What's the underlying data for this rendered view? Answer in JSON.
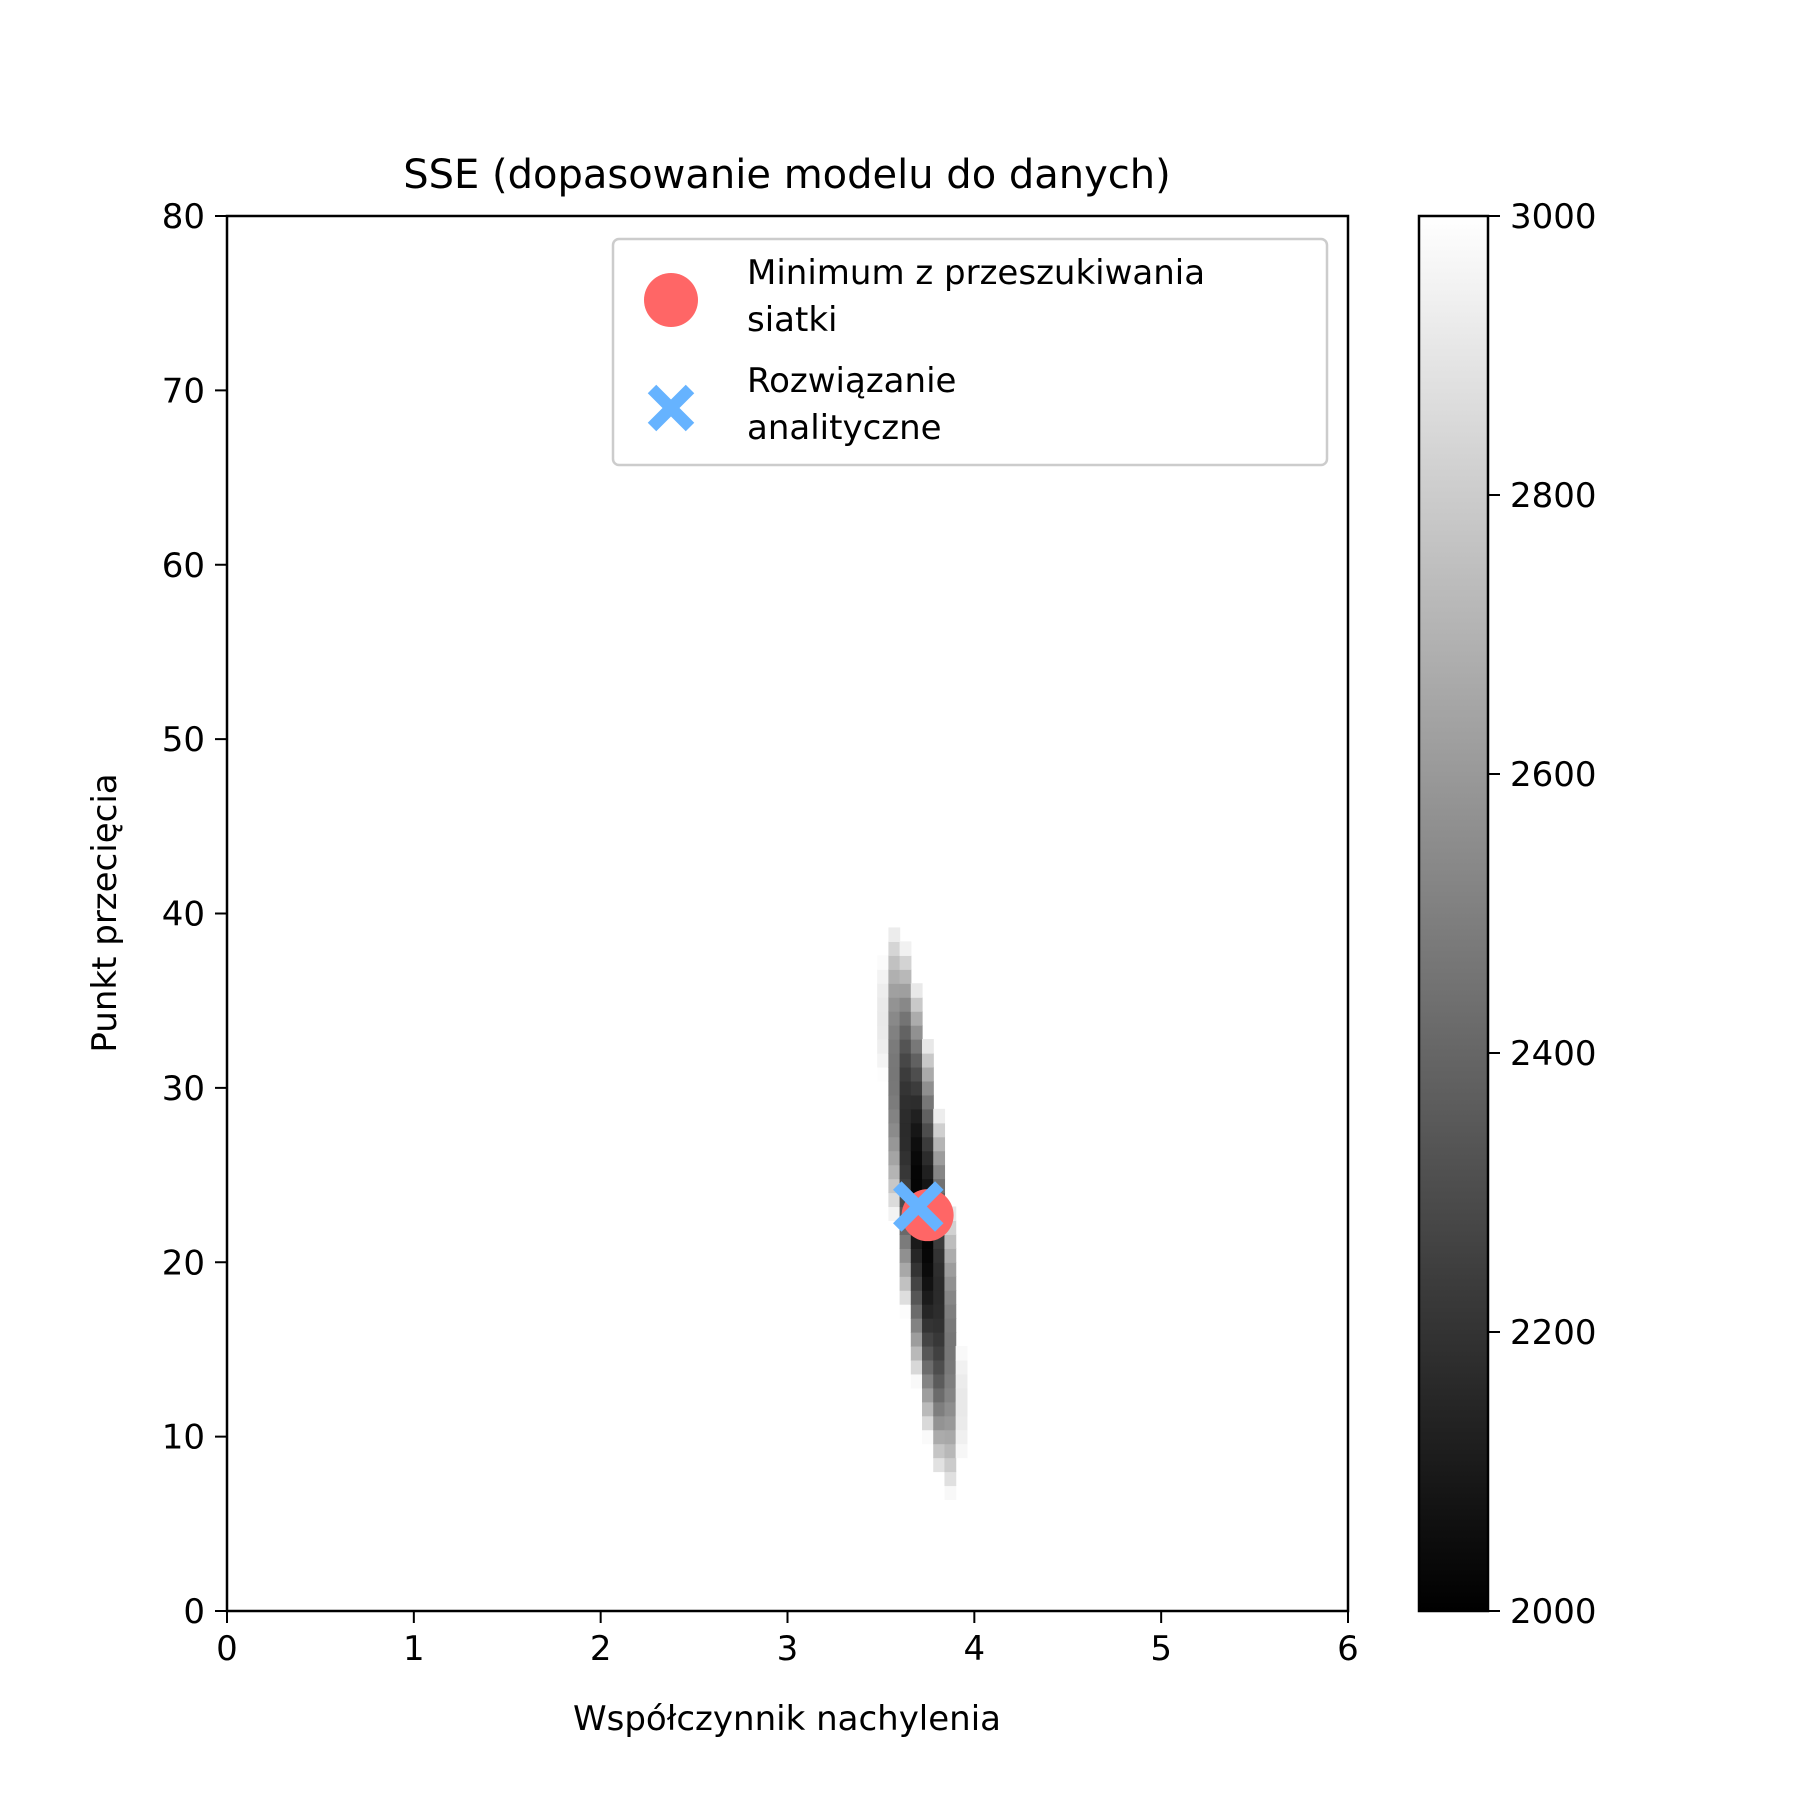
{
  "chart_data": {
    "type": "heatmap",
    "title": "SSE (dopasowanie modelu do danych)",
    "xlabel": "Współczynnik nachylenia",
    "ylabel": "Punkt przecięcia",
    "xlim": [
      0,
      6
    ],
    "ylim": [
      0,
      80
    ],
    "xticks": [
      0,
      1,
      2,
      3,
      4,
      5,
      6
    ],
    "yticks": [
      0,
      10,
      20,
      30,
      40,
      50,
      60,
      70,
      80
    ],
    "grid": false,
    "colormap": "gray",
    "colorbar": {
      "range": [
        2000,
        3000
      ],
      "ticks": [
        2000,
        2200,
        2400,
        2600,
        2800,
        3000
      ]
    },
    "sse_field": {
      "description_source": "grayscale SSE surface, clipped to 2000-3000",
      "minimum_sse": 2000,
      "center": [
        3.72,
        23.0
      ],
      "cells": {
        "x": [
          0,
          6,
          100
        ],
        "y": [
          0,
          80,
          100
        ]
      }
    },
    "markers": [
      {
        "label": "Minimum z przeszukiwania siatki",
        "x": 3.75,
        "y": 22.7,
        "marker": "circle",
        "color": "#ff6666"
      },
      {
        "label": "Rozwiązanie analityczne",
        "x": 3.7,
        "y": 23.2,
        "marker": "x",
        "color": "#66b3ff"
      }
    ],
    "legend": {
      "position": "upper-right",
      "entries": [
        {
          "lines": [
            "Minimum z przeszukiwania",
            "siatki"
          ],
          "marker": "circle",
          "color": "#ff6666"
        },
        {
          "lines": [
            "Rozwiązanie",
            "analityczne"
          ],
          "marker": "x",
          "color": "#66b3ff"
        }
      ]
    }
  }
}
